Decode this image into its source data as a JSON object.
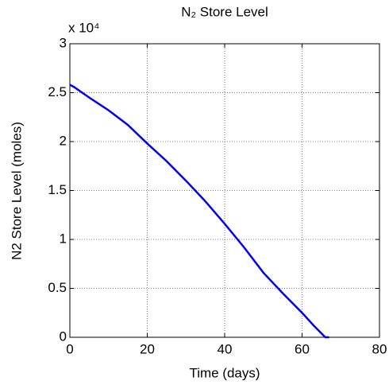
{
  "chart_data": {
    "type": "line",
    "title": "N₂ Store Level",
    "x_label": "Time (days)",
    "y_label": "N2 Store Level (moles)",
    "y_multiplier": "x 10⁴",
    "x": [
      0,
      1,
      5,
      10,
      15,
      20,
      25,
      30,
      35,
      40,
      45,
      50,
      55,
      60,
      63,
      66,
      67
    ],
    "series": [
      {
        "color": "#0000ff",
        "values": [
          2.58,
          2.56,
          2.45,
          2.32,
          2.17,
          1.98,
          1.8,
          1.6,
          1.39,
          1.16,
          0.92,
          0.66,
          0.45,
          0.25,
          0.12,
          0.0,
          0.0
        ]
      }
    ],
    "xlim": [
      0,
      80
    ],
    "xticks": [
      0,
      20,
      40,
      60,
      80
    ],
    "ylim": [
      0,
      3
    ],
    "yticks": [
      0,
      0.5,
      1,
      1.5,
      2,
      2.5,
      3
    ],
    "grid": true
  }
}
